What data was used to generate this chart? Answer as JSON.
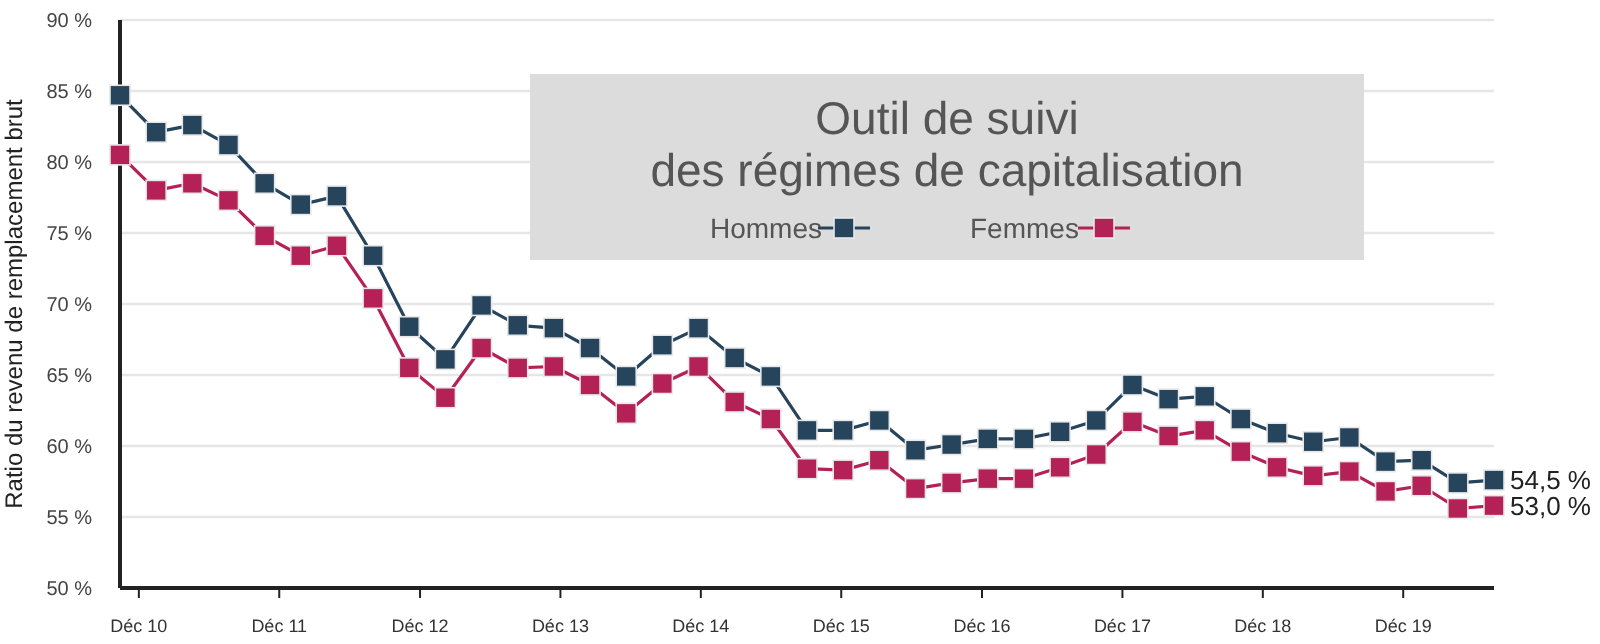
{
  "chart_data": {
    "type": "line",
    "title": "Outil de suivi\ndes régimes de capitalisation",
    "ylabel": "Ratio du revenu de remplacement brut",
    "x": [
      "2010-10-13",
      "2011-01-15",
      "2011-04-19",
      "2011-07-22",
      "2011-10-24",
      "2012-01-26",
      "2012-04-29",
      "2012-08-01",
      "2012-11-03",
      "2013-02-05",
      "2013-05-10",
      "2013-08-12",
      "2013-11-14",
      "2014-02-16",
      "2014-05-21",
      "2014-08-23",
      "2014-11-25",
      "2015-02-27",
      "2015-06-01",
      "2015-09-03",
      "2015-12-06",
      "2016-03-09",
      "2016-06-11",
      "2016-09-13",
      "2016-12-16",
      "2017-03-20",
      "2017-06-22",
      "2017-09-24",
      "2017-12-27",
      "2018-03-31",
      "2018-07-03",
      "2018-10-05",
      "2019-01-07",
      "2019-04-11",
      "2019-07-14",
      "2019-10-16",
      "2020-01-18",
      "2020-04-21",
      "2020-07-24"
    ],
    "xlim": [
      "2010-10-13",
      "2020-07-24"
    ],
    "xticks": [
      {
        "value": "2010-12-01",
        "label": "Déc 10"
      },
      {
        "value": "2011-12-01",
        "label": "Déc 11"
      },
      {
        "value": "2012-12-01",
        "label": "Déc 12"
      },
      {
        "value": "2013-12-01",
        "label": "Déc 13"
      },
      {
        "value": "2014-12-01",
        "label": "Déc 14"
      },
      {
        "value": "2015-12-01",
        "label": "Déc 15"
      },
      {
        "value": "2016-12-01",
        "label": "Déc 16"
      },
      {
        "value": "2017-12-01",
        "label": "Déc 17"
      },
      {
        "value": "2018-12-01",
        "label": "Déc 18"
      },
      {
        "value": "2019-12-01",
        "label": "Déc 19"
      }
    ],
    "ylim": [
      50,
      90
    ],
    "yticks": [
      {
        "value": 50,
        "label": "50 %"
      },
      {
        "value": 55,
        "label": "55 %"
      },
      {
        "value": 60,
        "label": "60 %"
      },
      {
        "value": 65,
        "label": "65 %"
      },
      {
        "value": 70,
        "label": "70 %"
      },
      {
        "value": 75,
        "label": "75 %"
      },
      {
        "value": 80,
        "label": "80 %"
      },
      {
        "value": 85,
        "label": "85 %"
      },
      {
        "value": 90,
        "label": "90 %"
      }
    ],
    "series": [
      {
        "name": "Hommes",
        "color": "#26445c",
        "values": [
          84.7,
          82.1,
          82.6,
          81.2,
          78.5,
          77.0,
          77.6,
          73.4,
          68.4,
          66.1,
          69.9,
          68.5,
          68.3,
          66.9,
          64.9,
          67.1,
          68.3,
          66.2,
          64.9,
          61.1,
          61.1,
          61.8,
          59.7,
          60.1,
          60.5,
          60.5,
          61.0,
          61.8,
          64.3,
          63.3,
          63.5,
          61.9,
          60.9,
          60.3,
          60.6,
          58.9,
          59.0,
          57.4,
          57.6
        ]
      },
      {
        "name": "Femmes",
        "color": "#b42157",
        "values": [
          80.5,
          78.0,
          78.5,
          77.3,
          74.8,
          73.4,
          74.1,
          70.4,
          65.5,
          63.4,
          66.9,
          65.5,
          65.6,
          64.3,
          62.3,
          64.4,
          65.6,
          63.1,
          61.9,
          58.4,
          58.3,
          59.0,
          57.0,
          57.4,
          57.7,
          57.7,
          58.5,
          59.4,
          61.7,
          60.7,
          61.1,
          59.6,
          58.5,
          57.9,
          58.2,
          56.8,
          57.2,
          55.6,
          55.8
        ]
      }
    ],
    "annotations": [
      "54,5 %",
      "53,0 %"
    ],
    "grid": "y",
    "legend": "top",
    "marker": "square",
    "line_style": "solid"
  }
}
